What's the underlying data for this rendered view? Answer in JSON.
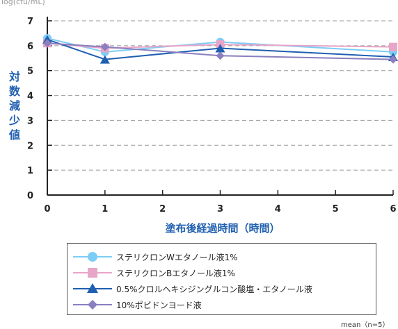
{
  "chart_data": {
    "type": "line",
    "unit_label": "log(cfu/mL)",
    "ylabel": "対数減少値",
    "xlabel": "塗布後経過時間（時間）",
    "x_ticks": [
      0,
      1,
      2,
      3,
      4,
      5,
      6
    ],
    "y_ticks": [
      0,
      1,
      2,
      3,
      4,
      5,
      6,
      7
    ],
    "xlim": [
      0,
      6
    ],
    "ylim": [
      0,
      7
    ],
    "grid": "horizontal-dashed",
    "x": [
      0,
      1,
      3,
      6
    ],
    "series": [
      {
        "name": "ステリクロンWエタノール液1%",
        "values": [
          6.3,
          5.75,
          6.15,
          5.75
        ],
        "color": "#7ccdf5",
        "marker": "circle"
      },
      {
        "name": "ステリクロンBエタノール液1%",
        "values": [
          6.1,
          5.9,
          6.05,
          5.95
        ],
        "color": "#e8a5c8",
        "marker": "square"
      },
      {
        "name": "0.5%クロルヘキシジングルコン酸塩・エタノール液",
        "values": [
          6.25,
          5.45,
          5.9,
          5.55
        ],
        "color": "#1f5fb0",
        "marker": "triangle"
      },
      {
        "name": "10%ポビドンヨード液",
        "values": [
          6.1,
          5.95,
          5.6,
          5.45
        ],
        "color": "#8a7fbf",
        "marker": "diamond"
      }
    ],
    "note": "mean（n=5）"
  }
}
